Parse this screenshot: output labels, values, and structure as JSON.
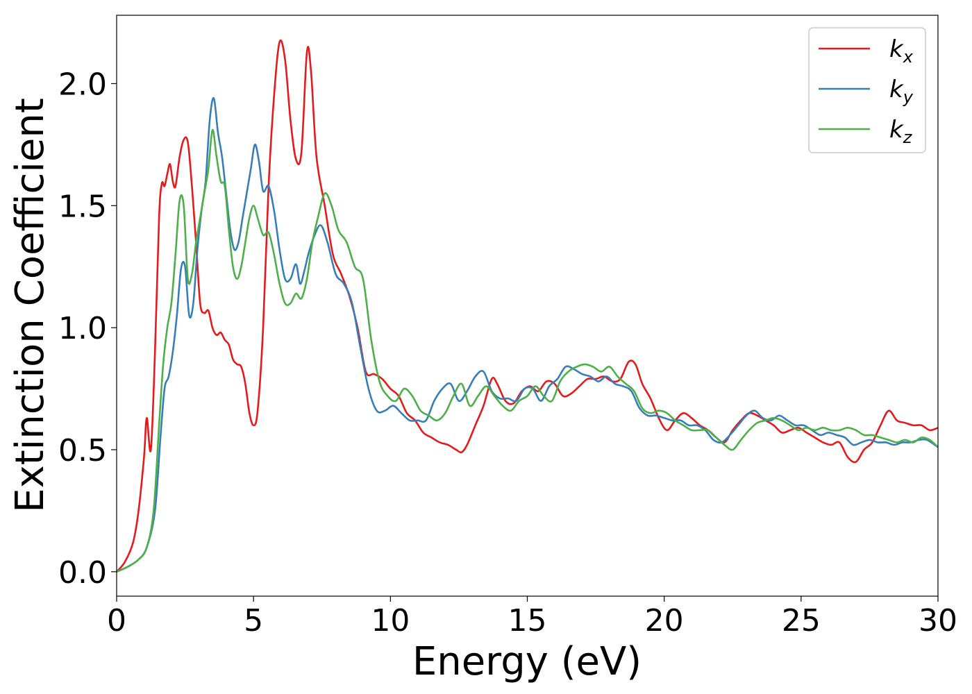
{
  "chart_data": {
    "type": "line",
    "xlabel": "Energy (eV)",
    "ylabel": "Extinction Coefficient",
    "xlim": [
      0,
      30
    ],
    "ylim": [
      -0.1,
      2.28
    ],
    "xticks": [
      0,
      5,
      10,
      15,
      20,
      25,
      30
    ],
    "xtick_labels": [
      "0",
      "5",
      "10",
      "15",
      "20",
      "25",
      "30"
    ],
    "yticks": [
      0.0,
      0.5,
      1.0,
      1.5,
      2.0
    ],
    "ytick_labels": [
      "0.0",
      "0.5",
      "1.0",
      "1.5",
      "2.0"
    ],
    "grid": false,
    "legend_position": "top-right",
    "series": [
      {
        "name": "k_x",
        "label_main": "k",
        "label_sub": "x",
        "color": "#e41a1c",
        "x": [
          0,
          0.3,
          0.6,
          0.8,
          1.0,
          1.1,
          1.25,
          1.4,
          1.55,
          1.65,
          1.75,
          1.85,
          1.95,
          2.05,
          2.15,
          2.3,
          2.45,
          2.6,
          2.75,
          2.9,
          3.05,
          3.2,
          3.35,
          3.5,
          3.65,
          3.8,
          3.95,
          4.1,
          4.25,
          4.4,
          4.55,
          4.7,
          4.85,
          5.0,
          5.15,
          5.35,
          5.55,
          5.75,
          5.95,
          6.15,
          6.35,
          6.55,
          6.75,
          6.95,
          7.1,
          7.3,
          7.6,
          7.9,
          8.2,
          8.5,
          8.8,
          9.1,
          9.4,
          9.7,
          10.0,
          10.3,
          10.6,
          10.9,
          11.2,
          11.5,
          11.8,
          12.1,
          12.4,
          12.6,
          12.8,
          13.1,
          13.4,
          13.7,
          13.9,
          14.2,
          14.5,
          14.8,
          15.1,
          15.4,
          15.7,
          16.0,
          16.3,
          16.6,
          16.9,
          17.2,
          17.5,
          17.8,
          18.1,
          18.4,
          18.7,
          18.95,
          19.2,
          19.5,
          19.8,
          20.1,
          20.4,
          20.7,
          21.0,
          21.3,
          21.6,
          21.9,
          22.2,
          22.5,
          22.8,
          23.1,
          23.4,
          23.7,
          24.0,
          24.3,
          24.6,
          24.9,
          25.2,
          25.5,
          25.8,
          26.1,
          26.4,
          26.7,
          27.0,
          27.3,
          27.6,
          27.9,
          28.2,
          28.5,
          28.8,
          29.1,
          29.4,
          29.7,
          30.0
        ],
        "y": [
          0.0,
          0.04,
          0.12,
          0.25,
          0.47,
          0.63,
          0.5,
          0.9,
          1.45,
          1.59,
          1.58,
          1.63,
          1.67,
          1.6,
          1.58,
          1.7,
          1.77,
          1.76,
          1.58,
          1.35,
          1.1,
          1.06,
          1.07,
          1.0,
          0.97,
          0.98,
          0.95,
          0.93,
          0.87,
          0.85,
          0.84,
          0.77,
          0.65,
          0.6,
          0.66,
          1.0,
          1.58,
          1.95,
          2.17,
          2.1,
          1.85,
          1.69,
          1.72,
          2.13,
          2.05,
          1.7,
          1.5,
          1.3,
          1.22,
          1.13,
          1.0,
          0.82,
          0.81,
          0.79,
          0.75,
          0.72,
          0.65,
          0.62,
          0.57,
          0.55,
          0.53,
          0.52,
          0.5,
          0.49,
          0.52,
          0.6,
          0.68,
          0.79,
          0.77,
          0.7,
          0.69,
          0.74,
          0.76,
          0.74,
          0.78,
          0.77,
          0.72,
          0.73,
          0.76,
          0.79,
          0.79,
          0.8,
          0.78,
          0.79,
          0.86,
          0.85,
          0.77,
          0.71,
          0.63,
          0.58,
          0.62,
          0.65,
          0.63,
          0.6,
          0.58,
          0.55,
          0.53,
          0.58,
          0.62,
          0.65,
          0.64,
          0.62,
          0.6,
          0.57,
          0.58,
          0.59,
          0.57,
          0.55,
          0.53,
          0.52,
          0.53,
          0.47,
          0.45,
          0.5,
          0.53,
          0.6,
          0.66,
          0.62,
          0.61,
          0.6,
          0.6,
          0.58,
          0.59
        ]
      },
      {
        "name": "k_y",
        "label_main": "k",
        "label_sub": "y",
        "color": "#377eb8",
        "x": [
          0,
          0.4,
          0.8,
          1.1,
          1.4,
          1.6,
          1.75,
          1.9,
          2.05,
          2.2,
          2.35,
          2.5,
          2.65,
          2.8,
          2.95,
          3.1,
          3.25,
          3.4,
          3.55,
          3.7,
          3.85,
          4.0,
          4.15,
          4.3,
          4.45,
          4.6,
          4.75,
          4.9,
          5.05,
          5.2,
          5.35,
          5.55,
          5.75,
          5.95,
          6.15,
          6.35,
          6.55,
          6.7,
          6.85,
          7.0,
          7.2,
          7.45,
          7.7,
          8.0,
          8.3,
          8.6,
          8.9,
          9.2,
          9.5,
          9.8,
          10.1,
          10.4,
          10.7,
          11.0,
          11.3,
          11.6,
          11.9,
          12.2,
          12.5,
          12.8,
          13.1,
          13.4,
          13.7,
          14.0,
          14.3,
          14.6,
          14.9,
          15.2,
          15.5,
          15.8,
          16.1,
          16.4,
          16.7,
          17.0,
          17.3,
          17.6,
          17.9,
          18.2,
          18.5,
          18.8,
          19.1,
          19.4,
          19.7,
          20.0,
          20.3,
          20.6,
          20.9,
          21.2,
          21.5,
          21.8,
          22.1,
          22.4,
          22.7,
          23.0,
          23.3,
          23.6,
          23.9,
          24.2,
          24.5,
          24.8,
          25.1,
          25.4,
          25.7,
          26.0,
          26.3,
          26.6,
          26.9,
          27.2,
          27.5,
          27.8,
          28.1,
          28.4,
          28.7,
          29.0,
          29.3,
          29.6,
          30.0
        ],
        "y": [
          0.0,
          0.02,
          0.05,
          0.1,
          0.25,
          0.55,
          0.75,
          0.8,
          0.9,
          1.05,
          1.24,
          1.25,
          1.05,
          1.1,
          1.32,
          1.48,
          1.6,
          1.85,
          1.94,
          1.8,
          1.7,
          1.55,
          1.4,
          1.32,
          1.35,
          1.45,
          1.55,
          1.65,
          1.75,
          1.68,
          1.56,
          1.58,
          1.48,
          1.32,
          1.2,
          1.2,
          1.26,
          1.18,
          1.23,
          1.3,
          1.37,
          1.42,
          1.35,
          1.22,
          1.18,
          1.1,
          0.92,
          0.75,
          0.66,
          0.66,
          0.68,
          0.65,
          0.62,
          0.62,
          0.62,
          0.7,
          0.75,
          0.77,
          0.7,
          0.74,
          0.8,
          0.82,
          0.74,
          0.71,
          0.71,
          0.7,
          0.75,
          0.75,
          0.7,
          0.76,
          0.79,
          0.84,
          0.83,
          0.81,
          0.8,
          0.78,
          0.8,
          0.77,
          0.76,
          0.74,
          0.67,
          0.64,
          0.64,
          0.63,
          0.62,
          0.62,
          0.6,
          0.6,
          0.58,
          0.54,
          0.53,
          0.56,
          0.6,
          0.64,
          0.66,
          0.63,
          0.62,
          0.64,
          0.62,
          0.6,
          0.6,
          0.58,
          0.56,
          0.57,
          0.56,
          0.55,
          0.52,
          0.53,
          0.54,
          0.53,
          0.53,
          0.52,
          0.53,
          0.53,
          0.54,
          0.54,
          0.51
        ]
      },
      {
        "name": "k_z",
        "label_main": "k",
        "label_sub": "z",
        "color": "#4daf4a",
        "x": [
          0,
          0.4,
          0.8,
          1.1,
          1.35,
          1.55,
          1.7,
          1.85,
          2.0,
          2.15,
          2.3,
          2.45,
          2.6,
          2.75,
          2.9,
          3.05,
          3.2,
          3.35,
          3.5,
          3.65,
          3.8,
          3.95,
          4.1,
          4.25,
          4.4,
          4.55,
          4.7,
          4.85,
          5.0,
          5.15,
          5.35,
          5.55,
          5.75,
          5.95,
          6.15,
          6.35,
          6.55,
          6.75,
          6.95,
          7.15,
          7.35,
          7.6,
          7.85,
          8.1,
          8.4,
          8.7,
          9.0,
          9.3,
          9.6,
          9.9,
          10.2,
          10.5,
          10.8,
          11.1,
          11.4,
          11.7,
          12.0,
          12.3,
          12.6,
          12.9,
          13.2,
          13.5,
          13.8,
          14.1,
          14.4,
          14.7,
          15.0,
          15.3,
          15.6,
          15.9,
          16.2,
          16.5,
          16.8,
          17.1,
          17.4,
          17.7,
          18.0,
          18.3,
          18.6,
          18.9,
          19.2,
          19.5,
          19.8,
          20.1,
          20.4,
          20.7,
          21.0,
          21.3,
          21.6,
          21.9,
          22.2,
          22.5,
          22.8,
          23.1,
          23.4,
          23.7,
          24.0,
          24.3,
          24.6,
          24.9,
          25.2,
          25.5,
          25.8,
          26.1,
          26.4,
          26.7,
          27.0,
          27.3,
          27.6,
          27.9,
          28.2,
          28.5,
          28.8,
          29.1,
          29.4,
          29.7,
          30.0
        ],
        "y": [
          0.0,
          0.02,
          0.05,
          0.1,
          0.25,
          0.6,
          0.85,
          1.0,
          1.1,
          1.3,
          1.52,
          1.5,
          1.2,
          1.22,
          1.35,
          1.45,
          1.55,
          1.65,
          1.81,
          1.7,
          1.6,
          1.58,
          1.4,
          1.25,
          1.2,
          1.25,
          1.35,
          1.45,
          1.5,
          1.45,
          1.38,
          1.39,
          1.3,
          1.18,
          1.1,
          1.1,
          1.14,
          1.12,
          1.2,
          1.35,
          1.45,
          1.55,
          1.5,
          1.4,
          1.35,
          1.25,
          1.2,
          0.95,
          0.78,
          0.72,
          0.7,
          0.75,
          0.72,
          0.66,
          0.64,
          0.62,
          0.65,
          0.72,
          0.77,
          0.68,
          0.72,
          0.76,
          0.72,
          0.68,
          0.66,
          0.7,
          0.72,
          0.76,
          0.72,
          0.7,
          0.78,
          0.82,
          0.84,
          0.85,
          0.84,
          0.82,
          0.84,
          0.8,
          0.77,
          0.74,
          0.67,
          0.65,
          0.66,
          0.65,
          0.62,
          0.6,
          0.58,
          0.58,
          0.58,
          0.55,
          0.52,
          0.5,
          0.54,
          0.58,
          0.61,
          0.62,
          0.63,
          0.62,
          0.6,
          0.58,
          0.59,
          0.58,
          0.59,
          0.58,
          0.58,
          0.59,
          0.58,
          0.56,
          0.56,
          0.55,
          0.54,
          0.53,
          0.54,
          0.53,
          0.55,
          0.54,
          0.51
        ]
      }
    ]
  }
}
